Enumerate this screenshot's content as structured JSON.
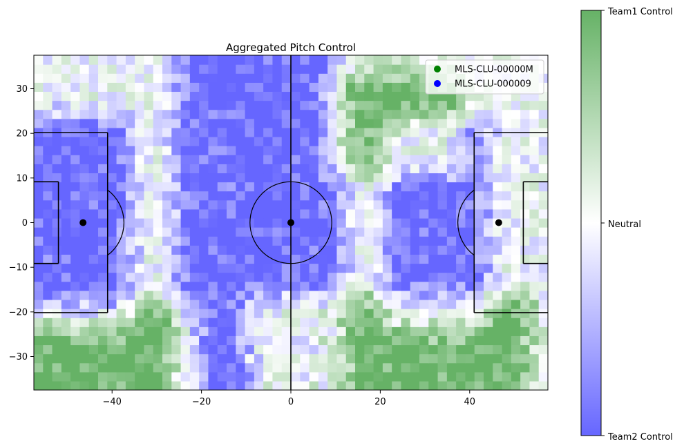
{
  "chart_data": {
    "type": "heatmap",
    "title": "Aggregated Pitch Control",
    "xlabel": "",
    "ylabel": "",
    "xlim": [
      -57.5,
      57.5
    ],
    "ylim": [
      -37.5,
      37.5
    ],
    "xticks": [
      -40,
      -20,
      0,
      20,
      40
    ],
    "yticks": [
      -30,
      -20,
      -10,
      0,
      10,
      20,
      30
    ],
    "xtick_labels": [
      "−40",
      "−20",
      "0",
      "20",
      "40"
    ],
    "ytick_labels": [
      "−30",
      "−20",
      "−10",
      "0",
      "10",
      "20",
      "30"
    ],
    "grid": false,
    "legend_position": "top-right",
    "legend": [
      {
        "label": "MLS-CLU-00000M",
        "color": "#008000"
      },
      {
        "label": "MLS-CLU-000009",
        "color": "#0000ff"
      }
    ],
    "colorbar": {
      "ticks": [
        {
          "value": 1,
          "label": "Team1 Control"
        },
        {
          "value": 0,
          "label": "Neutral"
        },
        {
          "value": -1,
          "label": "Team2 Control"
        }
      ],
      "colors": {
        "team1": "#66b266",
        "neutral": "#ffffff",
        "team2": "#6666ff"
      }
    },
    "grid_cells": {
      "nx": 56,
      "ny": 37,
      "cell_size_m": 2
    },
    "dominant_regions": [
      {
        "team": -1,
        "label": "Team2 Control",
        "x": [
          -22,
          8
        ],
        "y": [
          -36,
          37
        ]
      },
      {
        "team": -1,
        "label": "Team2 Control",
        "x": [
          -57.5,
          -40
        ],
        "y": [
          -20,
          20
        ]
      },
      {
        "team": -1,
        "label": "Team2 Control",
        "x": [
          25,
          40
        ],
        "y": [
          -20,
          20
        ]
      },
      {
        "team": 1,
        "label": "Team1 Control",
        "x": [
          -57.5,
          -25
        ],
        "y": [
          -37.5,
          -22
        ]
      },
      {
        "team": 1,
        "label": "Team1 Control",
        "x": [
          -6,
          50
        ],
        "y": [
          -37.5,
          -20
        ]
      },
      {
        "team": 1,
        "label": "Team1 Control",
        "x": [
          12,
          35
        ],
        "y": [
          15,
          30
        ]
      }
    ],
    "markers": [
      {
        "x": -46.5,
        "y": 0
      },
      {
        "x": 0,
        "y": 0
      },
      {
        "x": 46.5,
        "y": 0
      }
    ]
  }
}
